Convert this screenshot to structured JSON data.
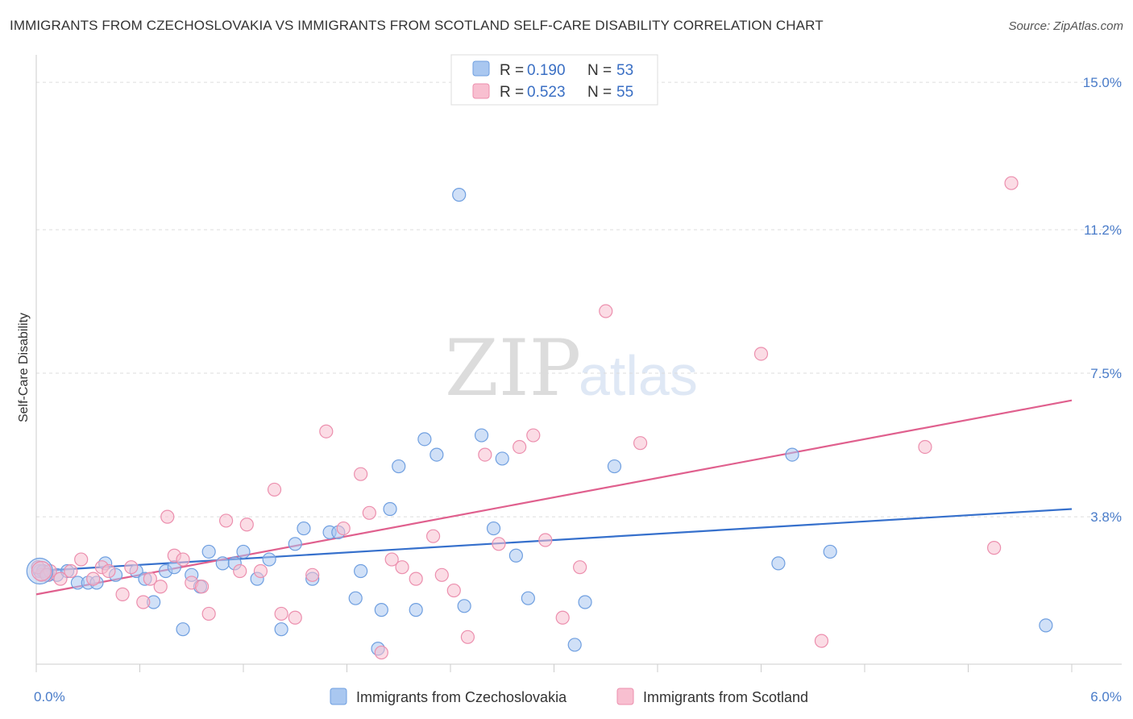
{
  "title": "IMMIGRANTS FROM CZECHOSLOVAKIA VS IMMIGRANTS FROM SCOTLAND SELF-CARE DISABILITY CORRELATION CHART",
  "source": "Source: ZipAtlas.com",
  "watermark": {
    "zip": "ZIP",
    "atlas": "atlas"
  },
  "colors": {
    "blue_fill": "#a9c7f0",
    "blue_stroke": "#6f9fe0",
    "blue_line": "#3670cc",
    "pink_fill": "#f8bfd0",
    "pink_stroke": "#ec8fae",
    "pink_line": "#e0608e",
    "tick_label": "#4a7cc9",
    "grid": "#dddddd"
  },
  "legend": {
    "rows": [
      {
        "r_label": "R =",
        "r_value": "0.190",
        "n_label": "N =",
        "n_value": "53"
      },
      {
        "r_label": "R =",
        "r_value": "0.523",
        "n_label": "N =",
        "n_value": "55"
      }
    ]
  },
  "chart_data": {
    "type": "scatter",
    "xlabel": "",
    "ylabel": "Self-Care Disability",
    "xlim": [
      0,
      6
    ],
    "ylim": [
      0,
      15.5
    ],
    "x_tick_labels": [
      "0.0%",
      "6.0%"
    ],
    "y_ticks": [
      3.8,
      7.5,
      11.2,
      15.0
    ],
    "y_tick_labels": [
      "3.8%",
      "7.5%",
      "11.2%",
      "15.0%"
    ],
    "grid": "horizontal-dashed",
    "legend_position": "top-center",
    "series": [
      {
        "name": "Immigrants from Czechoslovakia",
        "color": "blue",
        "trend": {
          "x": [
            0,
            6
          ],
          "y": [
            2.4,
            4.0
          ]
        },
        "points": [
          [
            0.02,
            2.4
          ],
          [
            0.07,
            2.3
          ],
          [
            0.12,
            2.3
          ],
          [
            0.18,
            2.4
          ],
          [
            0.24,
            2.1
          ],
          [
            0.3,
            2.1
          ],
          [
            0.35,
            2.1
          ],
          [
            0.4,
            2.6
          ],
          [
            0.46,
            2.3
          ],
          [
            0.58,
            2.4
          ],
          [
            0.63,
            2.2
          ],
          [
            0.68,
            1.6
          ],
          [
            0.75,
            2.4
          ],
          [
            0.8,
            2.5
          ],
          [
            0.85,
            0.9
          ],
          [
            0.9,
            2.3
          ],
          [
            0.95,
            2.0
          ],
          [
            1.0,
            2.9
          ],
          [
            1.08,
            2.6
          ],
          [
            1.15,
            2.6
          ],
          [
            1.2,
            2.9
          ],
          [
            1.28,
            2.2
          ],
          [
            1.35,
            2.7
          ],
          [
            1.42,
            0.9
          ],
          [
            1.5,
            3.1
          ],
          [
            1.55,
            3.5
          ],
          [
            1.6,
            2.2
          ],
          [
            1.7,
            3.4
          ],
          [
            1.75,
            3.4
          ],
          [
            1.85,
            1.7
          ],
          [
            1.88,
            2.4
          ],
          [
            1.98,
            0.4
          ],
          [
            2.0,
            1.4
          ],
          [
            2.05,
            4.0
          ],
          [
            2.1,
            5.1
          ],
          [
            2.2,
            1.4
          ],
          [
            2.25,
            5.8
          ],
          [
            2.32,
            5.4
          ],
          [
            2.45,
            12.1
          ],
          [
            2.48,
            1.5
          ],
          [
            2.58,
            5.9
          ],
          [
            2.65,
            3.5
          ],
          [
            2.7,
            5.3
          ],
          [
            2.78,
            2.8
          ],
          [
            2.85,
            1.7
          ],
          [
            3.12,
            0.5
          ],
          [
            3.18,
            1.6
          ],
          [
            3.35,
            5.1
          ],
          [
            4.3,
            2.6
          ],
          [
            4.38,
            5.4
          ],
          [
            4.6,
            2.9
          ],
          [
            5.85,
            1.0
          ],
          [
            0.04,
            2.4
          ]
        ]
      },
      {
        "name": "Immigrants from Scotland",
        "color": "pink",
        "trend": {
          "x": [
            0,
            6
          ],
          "y": [
            1.8,
            6.8
          ]
        },
        "points": [
          [
            0.03,
            2.3
          ],
          [
            0.08,
            2.4
          ],
          [
            0.14,
            2.2
          ],
          [
            0.2,
            2.4
          ],
          [
            0.26,
            2.7
          ],
          [
            0.33,
            2.2
          ],
          [
            0.38,
            2.5
          ],
          [
            0.42,
            2.4
          ],
          [
            0.5,
            1.8
          ],
          [
            0.55,
            2.5
          ],
          [
            0.62,
            1.6
          ],
          [
            0.66,
            2.2
          ],
          [
            0.72,
            2.0
          ],
          [
            0.76,
            3.8
          ],
          [
            0.8,
            2.8
          ],
          [
            0.85,
            2.7
          ],
          [
            0.9,
            2.1
          ],
          [
            0.96,
            2.0
          ],
          [
            1.0,
            1.3
          ],
          [
            1.1,
            3.7
          ],
          [
            1.18,
            2.4
          ],
          [
            1.22,
            3.6
          ],
          [
            1.3,
            2.4
          ],
          [
            1.38,
            4.5
          ],
          [
            1.42,
            1.3
          ],
          [
            1.5,
            1.2
          ],
          [
            1.6,
            2.3
          ],
          [
            1.68,
            6.0
          ],
          [
            1.78,
            3.5
          ],
          [
            1.88,
            4.9
          ],
          [
            1.93,
            3.9
          ],
          [
            2.0,
            0.3
          ],
          [
            2.06,
            2.7
          ],
          [
            2.12,
            2.5
          ],
          [
            2.2,
            2.2
          ],
          [
            2.3,
            3.3
          ],
          [
            2.35,
            2.3
          ],
          [
            2.42,
            1.9
          ],
          [
            2.5,
            0.7
          ],
          [
            2.6,
            5.4
          ],
          [
            2.68,
            3.1
          ],
          [
            2.8,
            5.6
          ],
          [
            2.88,
            5.9
          ],
          [
            2.95,
            3.2
          ],
          [
            3.05,
            1.2
          ],
          [
            3.15,
            2.5
          ],
          [
            3.3,
            9.1
          ],
          [
            3.5,
            5.7
          ],
          [
            4.2,
            8.0
          ],
          [
            4.55,
            0.6
          ],
          [
            5.15,
            5.6
          ],
          [
            5.55,
            3.0
          ],
          [
            5.65,
            12.4
          ],
          [
            0.01,
            2.5
          ],
          [
            0.06,
            2.3
          ]
        ]
      }
    ]
  }
}
